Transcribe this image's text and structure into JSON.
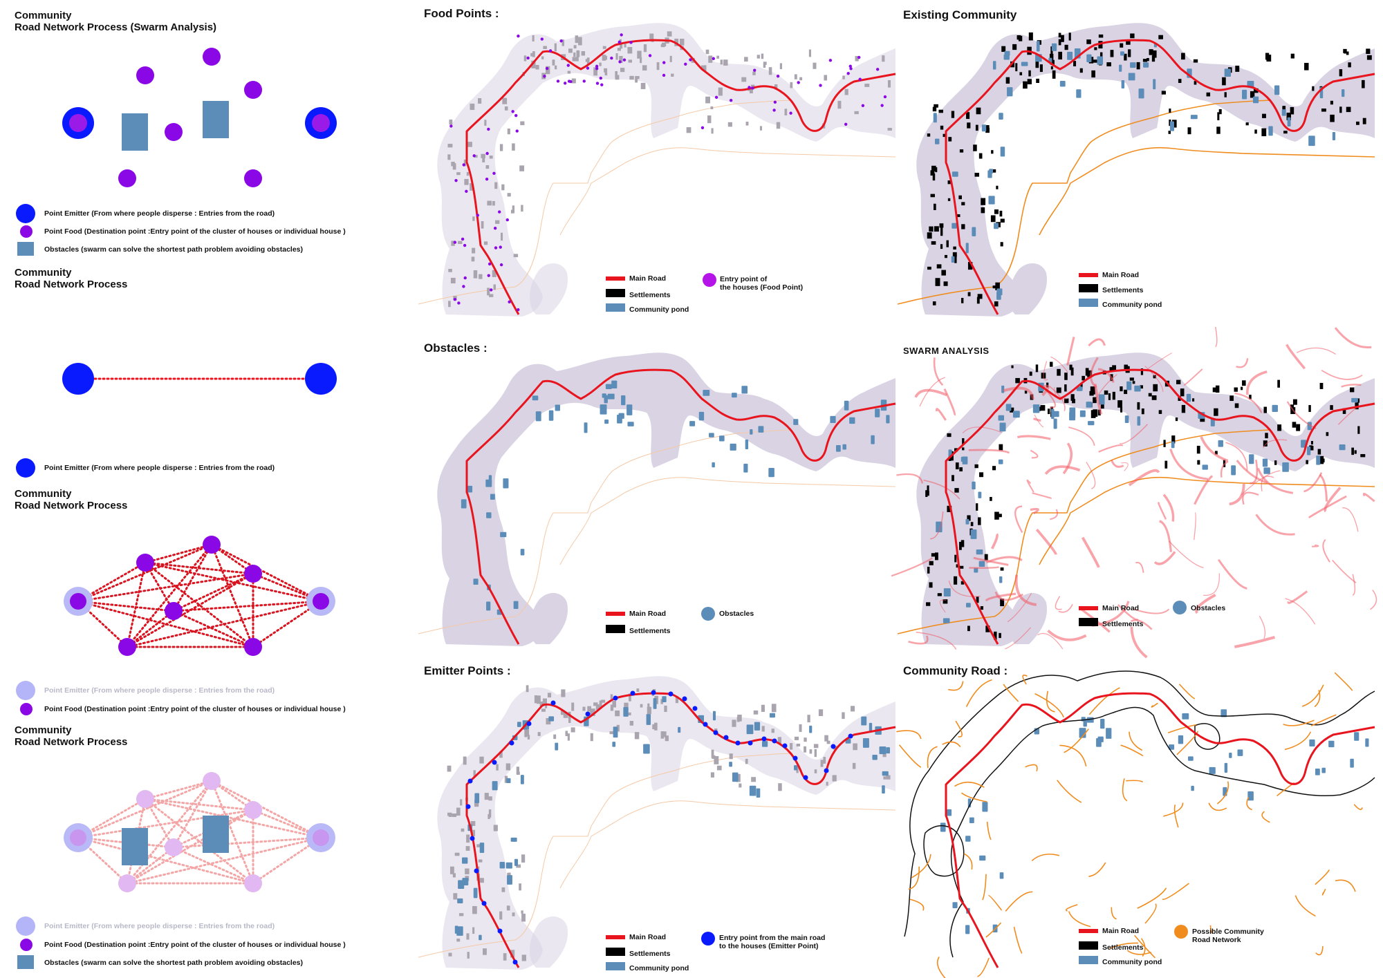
{
  "left": {
    "sec1_title": [
      "Community",
      "Road Network Process (Swarm Analysis)"
    ],
    "sec2_title": [
      "Community",
      "Road Network Process"
    ],
    "sec3_title": [
      "Community",
      "Road Network Process"
    ],
    "sec4_title": [
      "Community",
      "Road Network Process"
    ],
    "legend_emitter": "Point Emitter (From where people disperse : Entries from the road)",
    "legend_food": "Point Food (Destination point :Entry point of the cluster of houses or individual house )",
    "legend_obstacles": "Obstacles (swarm can solve the shortest path problem avoiding obstacles)"
  },
  "maps": {
    "food_points": {
      "title": "Food Points :",
      "legend": [
        "Main Road",
        "Settlements",
        "Community pond",
        "Entry point of",
        "the houses (Food Point)"
      ]
    },
    "existing": {
      "title": "Existing Community",
      "legend": [
        "Main Road",
        "Settlements",
        "Community pond"
      ]
    },
    "obstacles": {
      "title": "Obstacles :",
      "legend": [
        "Main Road",
        "Settlements",
        "Obstacles"
      ]
    },
    "swarm": {
      "title": "SWARM ANALYSIS",
      "legend": [
        "Main Road",
        "Settlements",
        "Obstacles"
      ]
    },
    "emitter": {
      "title": "Emitter Points :",
      "legend": [
        "Main Road",
        "Settlements",
        "Community pond",
        "Entry point from the main road",
        "to the houses (Emitter Point)"
      ]
    },
    "community_road": {
      "title": "Community Road :",
      "legend": [
        "Main Road",
        "Settlements",
        "Community pond",
        "Possible Community",
        "Road Network"
      ]
    }
  },
  "colors": {
    "emitter": "#0a1aff",
    "food": "#8a08e6",
    "obstacle": "#5b8db8",
    "main_road": "#e8141e",
    "community_road": "#f08c1e",
    "settlement_fill": "#d9d3e3"
  }
}
